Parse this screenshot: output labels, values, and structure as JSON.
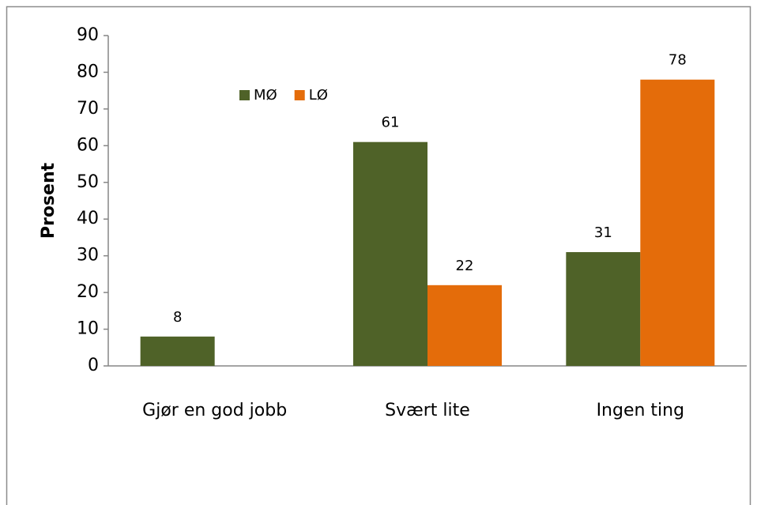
{
  "chart_data": {
    "type": "bar",
    "y_label": "Prosent",
    "categories": [
      "Gjør en god jobb",
      "Svært lite",
      "Ingen ting"
    ],
    "series": [
      {
        "name": "MØ",
        "color": "#4f6228",
        "values": [
          8,
          61,
          31
        ]
      },
      {
        "name": "LØ",
        "color": "#e46c0a",
        "values": [
          null,
          22,
          78
        ]
      }
    ],
    "ylim": [
      0,
      90
    ],
    "yticks": [
      0,
      10,
      20,
      30,
      40,
      50,
      60,
      70,
      80,
      90
    ],
    "grid": false,
    "legend": "top-left",
    "data_labels": true
  }
}
